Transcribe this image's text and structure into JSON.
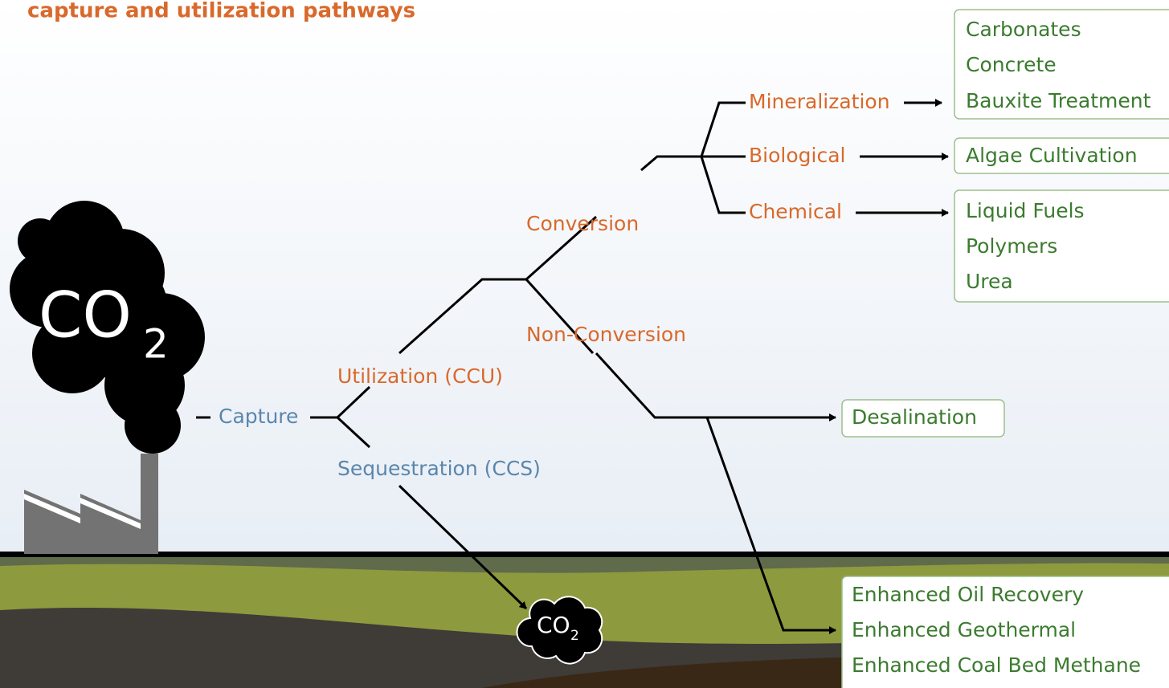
{
  "title": "capture and utilization pathways",
  "source": {
    "main": "CO",
    "sub": "2"
  },
  "sink": {
    "main": "CO",
    "sub": "2"
  },
  "nodes": [
    "Capture",
    "Utilization (CCU)",
    "Sequestration (CCS)",
    "Conversion",
    "Non-Conversion",
    "Mineralization",
    "Biological",
    "Chemical"
  ],
  "products": [
    [
      "Carbonates",
      "Concrete",
      "Bauxite Treatment"
    ],
    [
      "Algae Cultivation"
    ],
    [
      "Liquid Fuels",
      "Polymers",
      "Urea"
    ],
    [
      "Desalination"
    ],
    [
      "Enhanced Oil Recovery",
      "Enhanced Geothermal",
      "Enhanced Coal Bed Methane"
    ]
  ]
}
